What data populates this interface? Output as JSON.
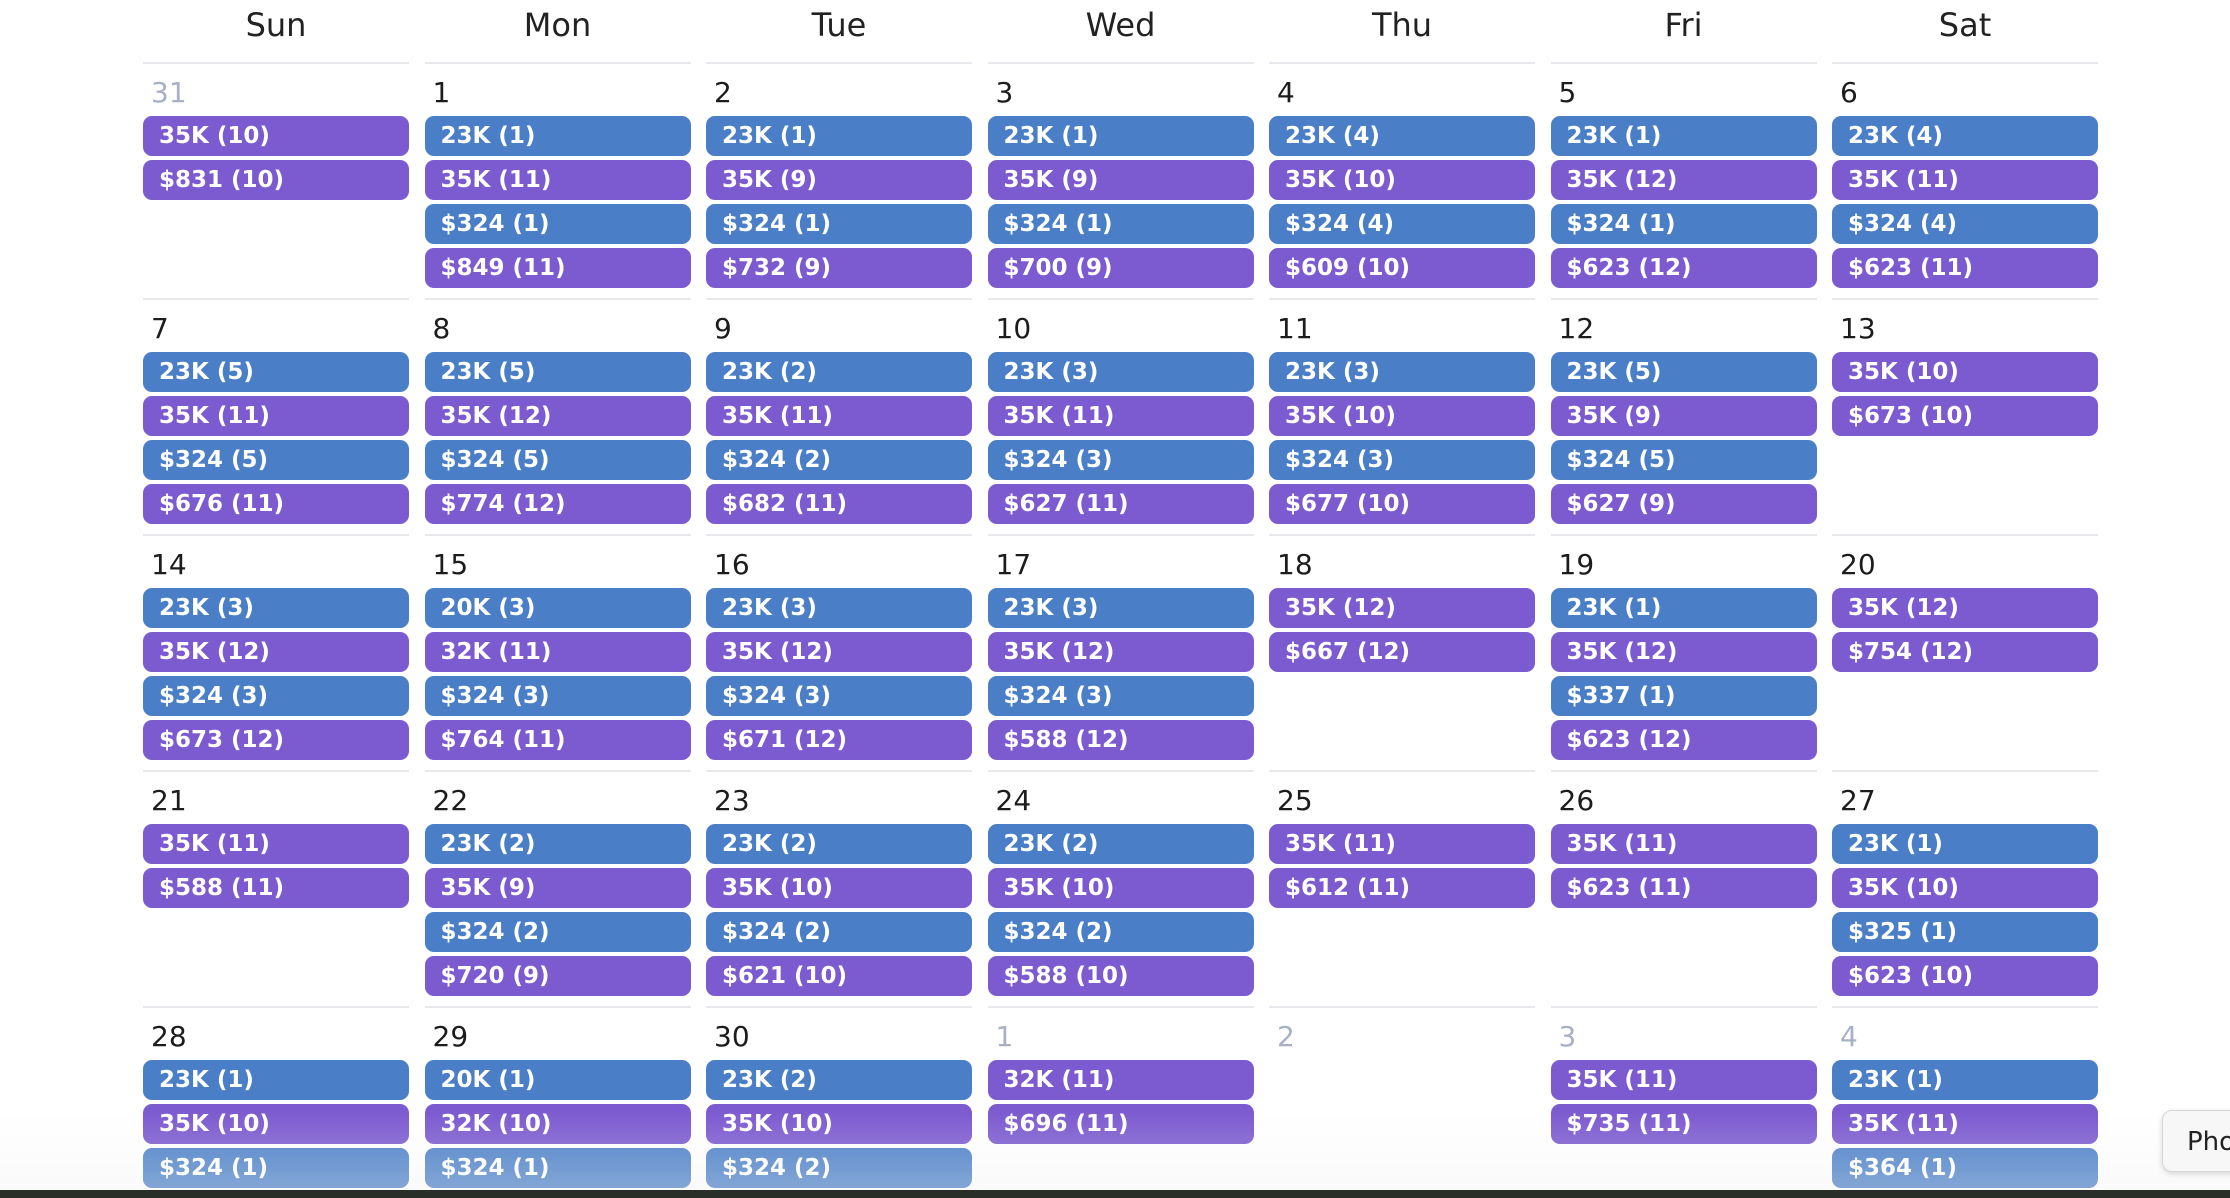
{
  "weekdays": [
    "Sun",
    "Mon",
    "Tue",
    "Wed",
    "Thu",
    "Fri",
    "Sat"
  ],
  "colors": {
    "blue": "#4a7fc8",
    "purple": "#7c5ad0",
    "muted_day": "#a8b0c4"
  },
  "weeks": [
    [
      {
        "day": "31",
        "muted": true,
        "events": [
          {
            "label": "35K (10)",
            "color": "purple"
          },
          {
            "label": "$831 (10)",
            "color": "purple"
          }
        ]
      },
      {
        "day": "1",
        "events": [
          {
            "label": "23K (1)",
            "color": "blue"
          },
          {
            "label": "35K (11)",
            "color": "purple"
          },
          {
            "label": "$324 (1)",
            "color": "blue"
          },
          {
            "label": "$849 (11)",
            "color": "purple"
          }
        ]
      },
      {
        "day": "2",
        "events": [
          {
            "label": "23K (1)",
            "color": "blue"
          },
          {
            "label": "35K (9)",
            "color": "purple"
          },
          {
            "label": "$324 (1)",
            "color": "blue"
          },
          {
            "label": "$732 (9)",
            "color": "purple"
          }
        ]
      },
      {
        "day": "3",
        "events": [
          {
            "label": "23K (1)",
            "color": "blue"
          },
          {
            "label": "35K (9)",
            "color": "purple"
          },
          {
            "label": "$324 (1)",
            "color": "blue"
          },
          {
            "label": "$700 (9)",
            "color": "purple"
          }
        ]
      },
      {
        "day": "4",
        "events": [
          {
            "label": "23K (4)",
            "color": "blue"
          },
          {
            "label": "35K (10)",
            "color": "purple"
          },
          {
            "label": "$324 (4)",
            "color": "blue"
          },
          {
            "label": "$609 (10)",
            "color": "purple"
          }
        ]
      },
      {
        "day": "5",
        "events": [
          {
            "label": "23K (1)",
            "color": "blue"
          },
          {
            "label": "35K (12)",
            "color": "purple"
          },
          {
            "label": "$324 (1)",
            "color": "blue"
          },
          {
            "label": "$623 (12)",
            "color": "purple"
          }
        ]
      },
      {
        "day": "6",
        "events": [
          {
            "label": "23K (4)",
            "color": "blue"
          },
          {
            "label": "35K (11)",
            "color": "purple"
          },
          {
            "label": "$324 (4)",
            "color": "blue"
          },
          {
            "label": "$623 (11)",
            "color": "purple"
          }
        ]
      }
    ],
    [
      {
        "day": "7",
        "events": [
          {
            "label": "23K (5)",
            "color": "blue"
          },
          {
            "label": "35K (11)",
            "color": "purple"
          },
          {
            "label": "$324 (5)",
            "color": "blue"
          },
          {
            "label": "$676 (11)",
            "color": "purple"
          }
        ]
      },
      {
        "day": "8",
        "events": [
          {
            "label": "23K (5)",
            "color": "blue"
          },
          {
            "label": "35K (12)",
            "color": "purple"
          },
          {
            "label": "$324 (5)",
            "color": "blue"
          },
          {
            "label": "$774 (12)",
            "color": "purple"
          }
        ]
      },
      {
        "day": "9",
        "events": [
          {
            "label": "23K (2)",
            "color": "blue"
          },
          {
            "label": "35K (11)",
            "color": "purple"
          },
          {
            "label": "$324 (2)",
            "color": "blue"
          },
          {
            "label": "$682 (11)",
            "color": "purple"
          }
        ]
      },
      {
        "day": "10",
        "events": [
          {
            "label": "23K (3)",
            "color": "blue"
          },
          {
            "label": "35K (11)",
            "color": "purple"
          },
          {
            "label": "$324 (3)",
            "color": "blue"
          },
          {
            "label": "$627 (11)",
            "color": "purple"
          }
        ]
      },
      {
        "day": "11",
        "events": [
          {
            "label": "23K (3)",
            "color": "blue"
          },
          {
            "label": "35K (10)",
            "color": "purple"
          },
          {
            "label": "$324 (3)",
            "color": "blue"
          },
          {
            "label": "$677 (10)",
            "color": "purple"
          }
        ]
      },
      {
        "day": "12",
        "events": [
          {
            "label": "23K (5)",
            "color": "blue"
          },
          {
            "label": "35K (9)",
            "color": "purple"
          },
          {
            "label": "$324 (5)",
            "color": "blue"
          },
          {
            "label": "$627 (9)",
            "color": "purple"
          }
        ]
      },
      {
        "day": "13",
        "events": [
          {
            "label": "35K (10)",
            "color": "purple"
          },
          {
            "label": "$673 (10)",
            "color": "purple"
          }
        ]
      }
    ],
    [
      {
        "day": "14",
        "events": [
          {
            "label": "23K (3)",
            "color": "blue"
          },
          {
            "label": "35K (12)",
            "color": "purple"
          },
          {
            "label": "$324 (3)",
            "color": "blue"
          },
          {
            "label": "$673 (12)",
            "color": "purple"
          }
        ]
      },
      {
        "day": "15",
        "events": [
          {
            "label": "20K (3)",
            "color": "blue"
          },
          {
            "label": "32K (11)",
            "color": "purple"
          },
          {
            "label": "$324 (3)",
            "color": "blue"
          },
          {
            "label": "$764 (11)",
            "color": "purple"
          }
        ]
      },
      {
        "day": "16",
        "events": [
          {
            "label": "23K (3)",
            "color": "blue"
          },
          {
            "label": "35K (12)",
            "color": "purple"
          },
          {
            "label": "$324 (3)",
            "color": "blue"
          },
          {
            "label": "$671 (12)",
            "color": "purple"
          }
        ]
      },
      {
        "day": "17",
        "events": [
          {
            "label": "23K (3)",
            "color": "blue"
          },
          {
            "label": "35K (12)",
            "color": "purple"
          },
          {
            "label": "$324 (3)",
            "color": "blue"
          },
          {
            "label": "$588 (12)",
            "color": "purple"
          }
        ]
      },
      {
        "day": "18",
        "events": [
          {
            "label": "35K (12)",
            "color": "purple"
          },
          {
            "label": "$667 (12)",
            "color": "purple"
          }
        ]
      },
      {
        "day": "19",
        "events": [
          {
            "label": "23K (1)",
            "color": "blue"
          },
          {
            "label": "35K (12)",
            "color": "purple"
          },
          {
            "label": "$337 (1)",
            "color": "blue"
          },
          {
            "label": "$623 (12)",
            "color": "purple"
          }
        ]
      },
      {
        "day": "20",
        "events": [
          {
            "label": "35K (12)",
            "color": "purple"
          },
          {
            "label": "$754 (12)",
            "color": "purple"
          }
        ]
      }
    ],
    [
      {
        "day": "21",
        "events": [
          {
            "label": "35K (11)",
            "color": "purple"
          },
          {
            "label": "$588 (11)",
            "color": "purple"
          }
        ]
      },
      {
        "day": "22",
        "events": [
          {
            "label": "23K (2)",
            "color": "blue"
          },
          {
            "label": "35K (9)",
            "color": "purple"
          },
          {
            "label": "$324 (2)",
            "color": "blue"
          },
          {
            "label": "$720 (9)",
            "color": "purple"
          }
        ]
      },
      {
        "day": "23",
        "events": [
          {
            "label": "23K (2)",
            "color": "blue"
          },
          {
            "label": "35K (10)",
            "color": "purple"
          },
          {
            "label": "$324 (2)",
            "color": "blue"
          },
          {
            "label": "$621 (10)",
            "color": "purple"
          }
        ]
      },
      {
        "day": "24",
        "events": [
          {
            "label": "23K (2)",
            "color": "blue"
          },
          {
            "label": "35K (10)",
            "color": "purple"
          },
          {
            "label": "$324 (2)",
            "color": "blue"
          },
          {
            "label": "$588 (10)",
            "color": "purple"
          }
        ]
      },
      {
        "day": "25",
        "events": [
          {
            "label": "35K (11)",
            "color": "purple"
          },
          {
            "label": "$612 (11)",
            "color": "purple"
          }
        ]
      },
      {
        "day": "26",
        "events": [
          {
            "label": "35K (11)",
            "color": "purple"
          },
          {
            "label": "$623 (11)",
            "color": "purple"
          }
        ]
      },
      {
        "day": "27",
        "events": [
          {
            "label": "23K (1)",
            "color": "blue"
          },
          {
            "label": "35K (10)",
            "color": "purple"
          },
          {
            "label": "$325 (1)",
            "color": "blue"
          },
          {
            "label": "$623 (10)",
            "color": "purple"
          }
        ]
      }
    ],
    [
      {
        "day": "28",
        "events": [
          {
            "label": "23K (1)",
            "color": "blue"
          },
          {
            "label": "35K (10)",
            "color": "purple"
          },
          {
            "label": "$324 (1)",
            "color": "blue"
          }
        ]
      },
      {
        "day": "29",
        "events": [
          {
            "label": "20K (1)",
            "color": "blue"
          },
          {
            "label": "32K (10)",
            "color": "purple"
          },
          {
            "label": "$324 (1)",
            "color": "blue"
          }
        ]
      },
      {
        "day": "30",
        "events": [
          {
            "label": "23K (2)",
            "color": "blue"
          },
          {
            "label": "35K (10)",
            "color": "purple"
          },
          {
            "label": "$324 (2)",
            "color": "blue"
          }
        ]
      },
      {
        "day": "1",
        "muted": true,
        "events": [
          {
            "label": "32K (11)",
            "color": "purple"
          },
          {
            "label": "$696 (11)",
            "color": "purple"
          }
        ]
      },
      {
        "day": "2",
        "muted": true,
        "events": []
      },
      {
        "day": "3",
        "muted": true,
        "events": [
          {
            "label": "35K (11)",
            "color": "purple"
          },
          {
            "label": "$735 (11)",
            "color": "purple"
          }
        ]
      },
      {
        "day": "4",
        "muted": true,
        "events": [
          {
            "label": "23K (1)",
            "color": "blue"
          },
          {
            "label": "35K (11)",
            "color": "purple"
          },
          {
            "label": "$364 (1)",
            "color": "blue"
          }
        ]
      }
    ]
  ],
  "side_tab": {
    "label": "Pho"
  }
}
